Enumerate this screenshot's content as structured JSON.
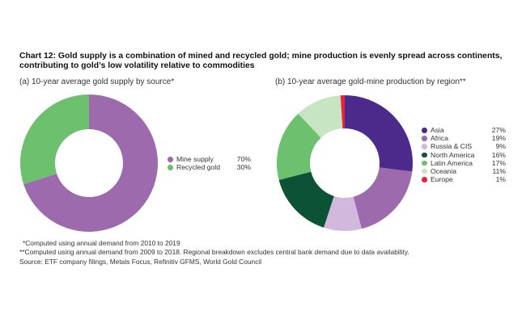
{
  "title": "Chart 12: Gold supply is a combination of mined and recycled gold; mine production is evenly spread across continents, contributing to gold’s low volatility relative to commodities",
  "notes": {
    "note1": "*Computed using annual demand from 2010 to 2019",
    "note2": "**Computed using annual demand from 2009 to 2018. Regional breakdown excludes central bank demand due to data availability.",
    "source": "Source: ETF company filings, Metals Focus, Refinitiv GFMS, World Gold Council"
  },
  "chart_data": [
    {
      "type": "pie",
      "subtype": "donut",
      "title": "(a) 10-year average gold supply by source*",
      "legend_position": "right",
      "slices": [
        {
          "label": "Mine supply",
          "value": 70,
          "display": "70%",
          "color": "#9c6aad"
        },
        {
          "label": "Recycled gold",
          "value": 30,
          "display": "30%",
          "color": "#6cc06e"
        }
      ]
    },
    {
      "type": "pie",
      "subtype": "donut",
      "title": "(b) 10-year average gold-mine production by region**",
      "legend_position": "right",
      "slices": [
        {
          "label": "Asia",
          "value": 27,
          "display": "27%",
          "color": "#4b2a8b"
        },
        {
          "label": "Africa",
          "value": 19,
          "display": "19%",
          "color": "#9c6aad"
        },
        {
          "label": "Russia & CIS",
          "value": 9,
          "display": "9%",
          "color": "#d0b9dc"
        },
        {
          "label": "North America",
          "value": 16,
          "display": "16%",
          "color": "#0b5236"
        },
        {
          "label": "Latin America",
          "value": 17,
          "display": "17%",
          "color": "#6cc06e"
        },
        {
          "label": "Oceania",
          "value": 11,
          "display": "11%",
          "color": "#c6e5c1"
        },
        {
          "label": "Europe",
          "value": 1,
          "display": "1%",
          "color": "#e8243a"
        }
      ]
    }
  ]
}
